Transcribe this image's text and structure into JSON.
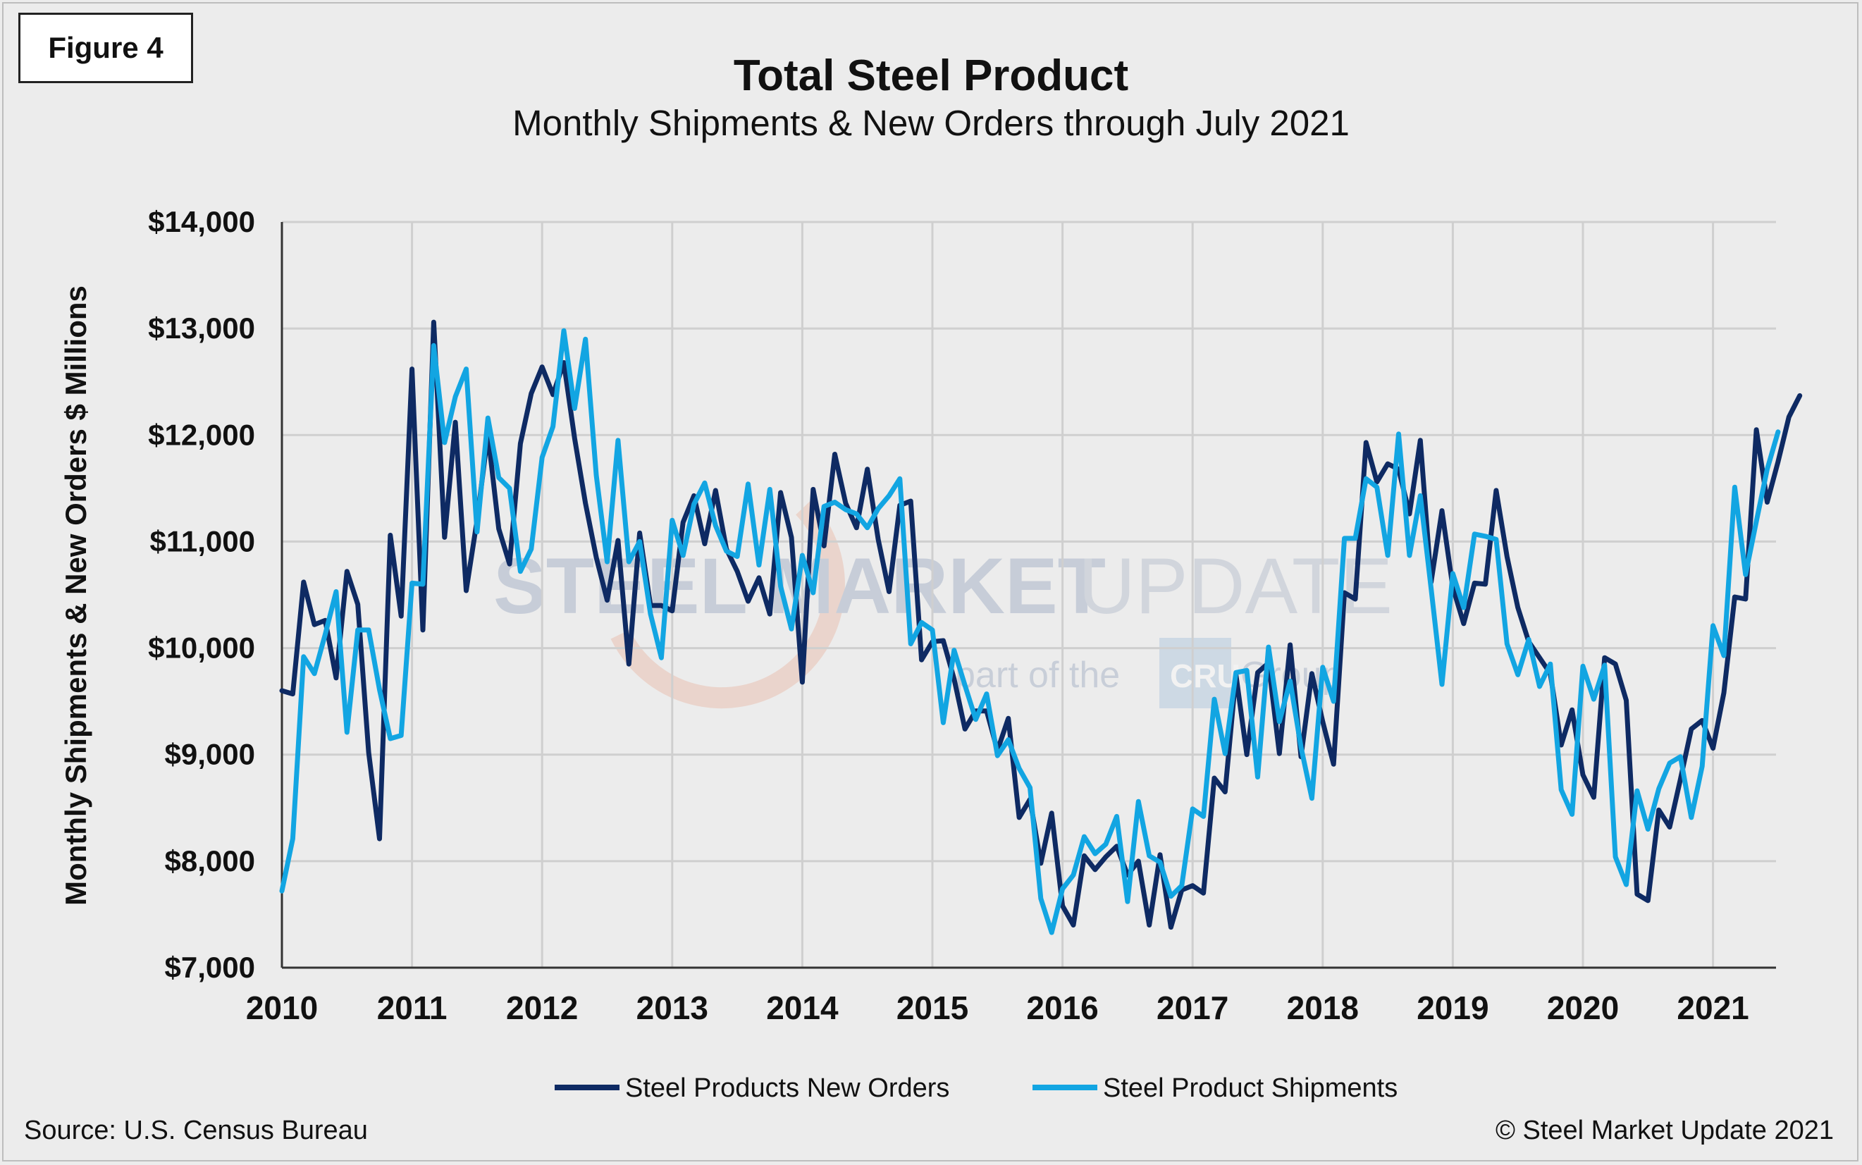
{
  "figure_label": "Figure 4",
  "watermark": {
    "brand_bold": "STEEL MARKET",
    "brand_light": "UPDATE",
    "tagline_pre": "part of the",
    "tagline_badge": "CRU",
    "tagline_post": "Group"
  },
  "footer": {
    "source": "Source: U.S. Census Bureau",
    "copyright": "© Steel Market Update 2021"
  },
  "chart_data": {
    "type": "line",
    "title": "Total Steel Product",
    "subtitle": "Monthly Shipments & New Orders through July 2021",
    "xlabel": "",
    "ylabel": "Monthly Shipments & New Orders $ Millions",
    "xlim": [
      "2010-01",
      "2021-07"
    ],
    "ylim": [
      7000,
      14000
    ],
    "x_ticks": [
      "2010",
      "2011",
      "2012",
      "2013",
      "2014",
      "2015",
      "2016",
      "2017",
      "2018",
      "2019",
      "2020",
      "2021"
    ],
    "y_ticks": [
      "$7,000",
      "$8,000",
      "$9,000",
      "$10,000",
      "$11,000",
      "$12,000",
      "$13,000",
      "$14,000"
    ],
    "y_tick_values": [
      7000,
      8000,
      9000,
      10000,
      11000,
      12000,
      13000,
      14000
    ],
    "x_start": "2010-01",
    "grid": true,
    "legend_position": "bottom",
    "series": [
      {
        "name": "Steel Products New Orders",
        "color": "#0e2a63",
        "values": [
          9600,
          9570,
          10620,
          10220,
          10260,
          9720,
          10720,
          10410,
          9020,
          8210,
          11060,
          10300,
          12620,
          10170,
          13060,
          11040,
          12120,
          10540,
          11200,
          12010,
          11120,
          10790,
          11920,
          12390,
          12640,
          12380,
          12680,
          11970,
          11360,
          10850,
          10450,
          11010,
          9850,
          11080,
          10400,
          10400,
          10350,
          11180,
          11430,
          10980,
          11480,
          10930,
          10720,
          10440,
          10660,
          10320,
          11460,
          11040,
          9680,
          11490,
          10960,
          11820,
          11360,
          11130,
          11680,
          11020,
          10530,
          11340,
          11380,
          9890,
          10060,
          10070,
          9710,
          9240,
          9410,
          9410,
          9040,
          9340,
          8410,
          8580,
          7980,
          8450,
          7580,
          7400,
          8050,
          7920,
          8040,
          8140,
          7870,
          8000,
          7400,
          8060,
          7380,
          7730,
          7770,
          7700,
          8780,
          8650,
          9750,
          9000,
          9770,
          9860,
          9010,
          10030,
          8980,
          9760,
          9310,
          8910,
          10520,
          10460,
          11930,
          11560,
          11730,
          11680,
          11260,
          11950,
          10620,
          11290,
          10570,
          10230,
          10610,
          10600,
          11480,
          10860,
          10380,
          10060,
          9910,
          9760,
          9090,
          9420,
          8810,
          8600,
          9910,
          9850,
          9510,
          7690,
          7630,
          8480,
          8320,
          8770,
          9240,
          9320,
          9060,
          9580,
          10480,
          10460,
          12050,
          11370,
          11750,
          12170,
          12370
        ]
      },
      {
        "name": "Steel Product Shipments",
        "color": "#12a5e2",
        "values": [
          7720,
          8210,
          9920,
          9760,
          10130,
          10530,
          9210,
          10170,
          10170,
          9610,
          9150,
          9180,
          10610,
          10600,
          12840,
          11930,
          12360,
          12620,
          11090,
          12160,
          11600,
          11500,
          10720,
          10930,
          11790,
          12080,
          12980,
          12250,
          12900,
          11620,
          10810,
          11950,
          10810,
          11000,
          10320,
          9910,
          11200,
          10870,
          11350,
          11550,
          11150,
          10910,
          10860,
          11540,
          10780,
          11490,
          10580,
          10180,
          10870,
          10520,
          11330,
          11370,
          11300,
          11260,
          11130,
          11310,
          11430,
          11590,
          10040,
          10240,
          10170,
          9300,
          9980,
          9650,
          9330,
          9570,
          8990,
          9140,
          8870,
          8690,
          7650,
          7330,
          7740,
          7870,
          8230,
          8070,
          8160,
          8420,
          7620,
          8560,
          8050,
          7990,
          7670,
          7770,
          8490,
          8420,
          9520,
          9010,
          9770,
          9790,
          8790,
          10010,
          9310,
          9690,
          9070,
          8590,
          9820,
          9500,
          11030,
          11030,
          11590,
          11510,
          10870,
          12010,
          10870,
          11430,
          10560,
          9660,
          10700,
          10380,
          11070,
          11050,
          11020,
          10040,
          9750,
          10080,
          9640,
          9850,
          8670,
          8440,
          9830,
          9520,
          9840,
          8040,
          7780,
          8660,
          8300,
          8680,
          8920,
          8980,
          8410,
          8890,
          10210,
          9930,
          11510,
          10690,
          11190,
          11680,
          12030
        ]
      }
    ]
  }
}
